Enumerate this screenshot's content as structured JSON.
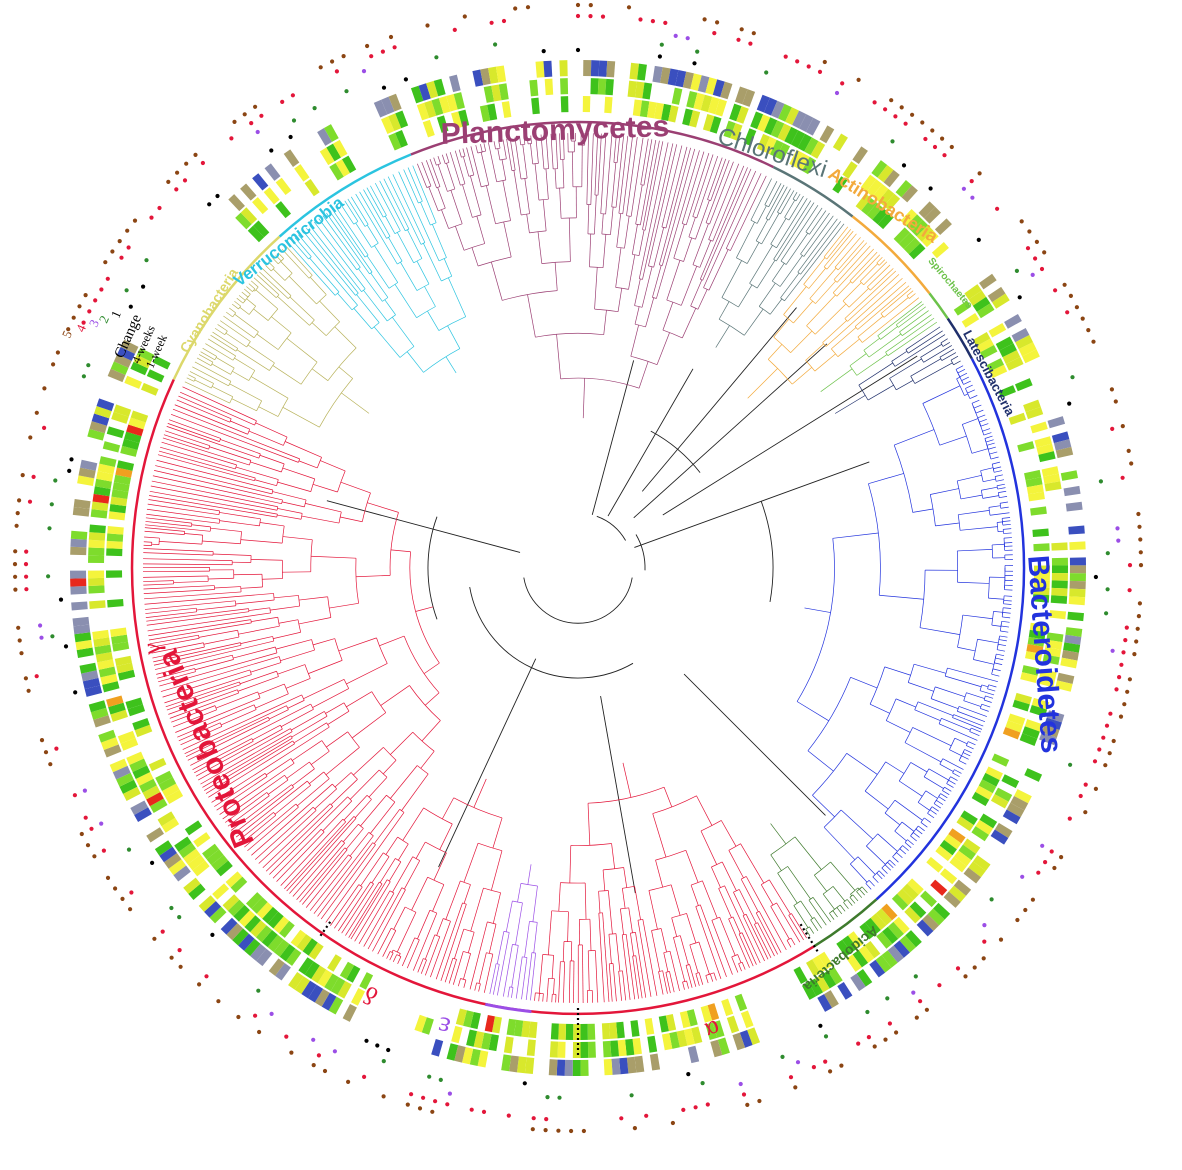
{
  "phyla": [
    {
      "key": "planctomycetes",
      "label": "Planctomycetes",
      "color": "#9b3f73"
    },
    {
      "key": "chloroflexi",
      "label": "Chloroflexi",
      "color": "#5a7577"
    },
    {
      "key": "actinobacteria",
      "label": "Actinobacteria",
      "color": "#f3aa3c"
    },
    {
      "key": "spirochaetes",
      "label": "Spirochaetes",
      "color": "#6cc24a"
    },
    {
      "key": "latescibacteria",
      "label": "Latescibacteria",
      "color": "#1f2f6b"
    },
    {
      "key": "bacteroidetes",
      "label": "Bacteroidetes",
      "color": "#2233dd"
    },
    {
      "key": "acidobacteria",
      "label": "Acidobacteria",
      "color": "#3e7a2c"
    },
    {
      "key": "proteobacteria",
      "label": "Proteobacteria",
      "color": "#e3163a"
    },
    {
      "key": "cyanobacteria",
      "label": "Cyanobacteria",
      "color": "#dcd86b"
    },
    {
      "key": "verrucomicrobia",
      "label": "Verrucomicrobia",
      "color": "#2bc4e0"
    }
  ],
  "subclasses": [
    {
      "key": "gamma",
      "label": "γ",
      "color": "#e3163a"
    },
    {
      "key": "delta",
      "label": "δ",
      "color": "#e3163a"
    },
    {
      "key": "epsilon",
      "label": "ε",
      "color": "#9b4ee6"
    },
    {
      "key": "alpha",
      "label": "α",
      "color": "#e3163a"
    }
  ],
  "ring_labels": [
    "Change",
    "4-weeks",
    "1-week"
  ],
  "dot_row_labels": [
    {
      "label": "5",
      "color": "#8b4513"
    },
    {
      "label": "4",
      "color": "#e3163a"
    },
    {
      "label": "3",
      "color": "#9b4ee6"
    },
    {
      "label": "2",
      "color": "#2e8b2e"
    },
    {
      "label": "1",
      "color": "#000000"
    }
  ],
  "heat_colors": [
    "#3a4fbf",
    "#8a8fb0",
    "#a99e6a",
    "#d8e82c",
    "#f4f43c",
    "#7edc2c",
    "#3ec21c",
    "#f0a020",
    "#e8281c"
  ],
  "dot_colors": [
    "#000000",
    "#2e8b2e",
    "#9b4ee6",
    "#e3163a",
    "#8b4513"
  ]
}
